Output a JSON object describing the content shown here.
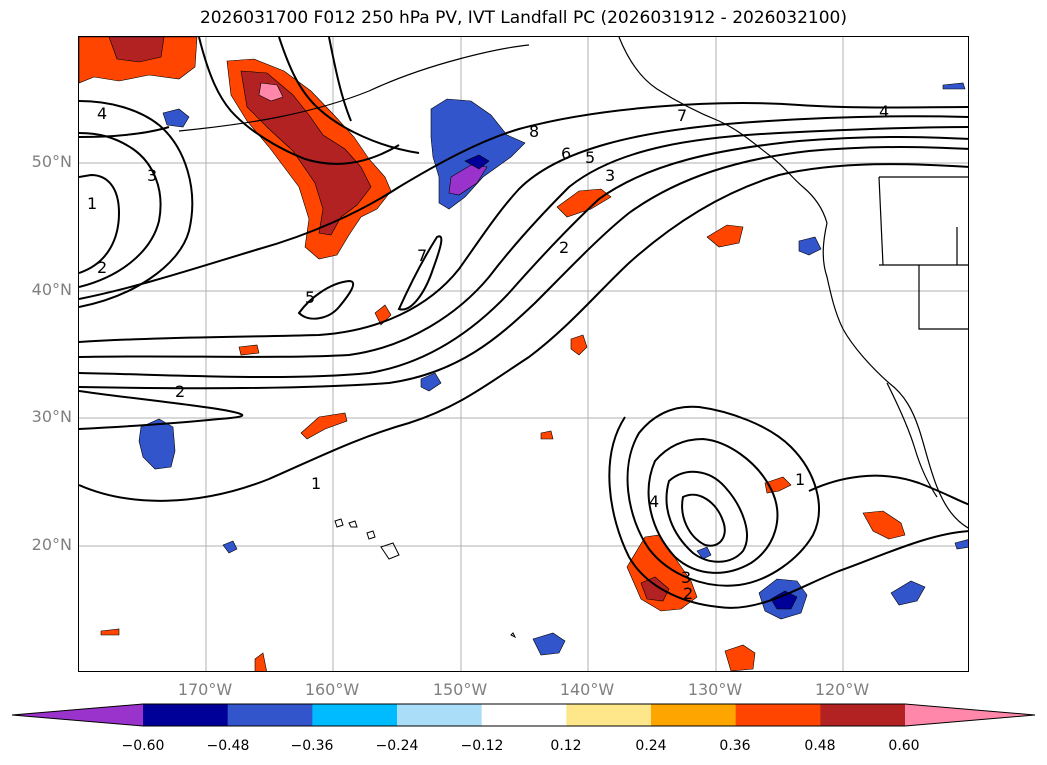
{
  "title": "2026031700 F012 250 hPa PV, IVT Landfall PC (2026031912 - 2026032100)",
  "latitude_labels": [
    "50°N",
    "40°N",
    "30°N",
    "20°N"
  ],
  "longitude_labels": [
    "170°W",
    "160°W",
    "150°W",
    "140°W",
    "130°W",
    "120°W"
  ],
  "contour_labels": [
    "4",
    "1",
    "3",
    "2",
    "5",
    "7",
    "8",
    "6",
    "5",
    "3",
    "2",
    "4",
    "2",
    "1",
    "1",
    "4",
    "3",
    "2",
    "7"
  ],
  "colorbar": {
    "ticks": [
      "−0.60",
      "−0.48",
      "−0.36",
      "−0.24",
      "−0.12",
      "0.12",
      "0.24",
      "0.36",
      "0.48",
      "0.60"
    ],
    "colors": [
      "#9933cc",
      "#000099",
      "#3355cc",
      "#00bbff",
      "#aaddf8",
      "#ffffff",
      "#fde78a",
      "#ffa500",
      "#ff4500",
      "#b22222",
      "#ff88aa"
    ]
  },
  "colors": {
    "pv_contour": "#000000",
    "coastline": "#000000",
    "grid": "#b0b0b0",
    "axis_label": "#808080"
  }
}
